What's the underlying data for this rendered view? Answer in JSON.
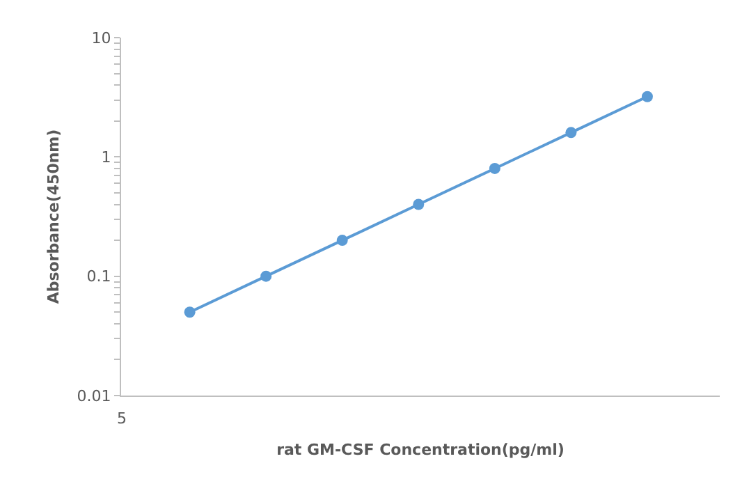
{
  "chart_data": {
    "type": "line",
    "xlabel": "rat GM-CSF Concentration(pg/ml)",
    "ylabel": "Absorbance(450nm)",
    "categories": [
      null,
      null,
      null,
      null,
      null,
      null,
      null
    ],
    "annotations": [
      "5"
    ],
    "series": [
      {
        "color": "#5b9bd5",
        "values": [
          0.05,
          0.1,
          0.2,
          0.4,
          0.8,
          1.6,
          3.2
        ]
      }
    ],
    "log": "y",
    "ylim": [
      0.01,
      10
    ],
    "yticks": [
      0.01,
      {
        "value": 0.02,
        "label": null
      },
      {
        "value": 0.03,
        "label": null
      },
      {
        "value": 0.04,
        "label": null
      },
      {
        "value": 0.05,
        "label": null
      },
      {
        "value": 0.06,
        "label": null
      },
      {
        "value": 0.07,
        "label": null
      },
      {
        "value": 0.08,
        "label": null
      },
      {
        "value": 0.09,
        "label": null
      },
      0.1,
      {
        "value": 0.2,
        "label": null
      },
      {
        "value": 0.3,
        "label": null
      },
      {
        "value": 0.4,
        "label": null
      },
      {
        "value": 0.5,
        "label": null
      },
      {
        "value": 0.6,
        "label": null
      },
      {
        "value": 0.7,
        "label": null
      },
      {
        "value": 0.8,
        "label": null
      },
      {
        "value": 0.9,
        "label": null
      },
      1,
      {
        "value": 2,
        "label": null
      },
      {
        "value": 3,
        "label": null
      },
      {
        "value": 4,
        "label": null
      },
      {
        "value": 5,
        "label": null
      },
      {
        "value": 6,
        "label": null
      },
      {
        "value": 7,
        "label": null
      },
      {
        "value": 8,
        "label": null
      },
      {
        "value": 9,
        "label": null
      },
      10
    ],
    "marker": "circle",
    "line_style": "solid"
  }
}
